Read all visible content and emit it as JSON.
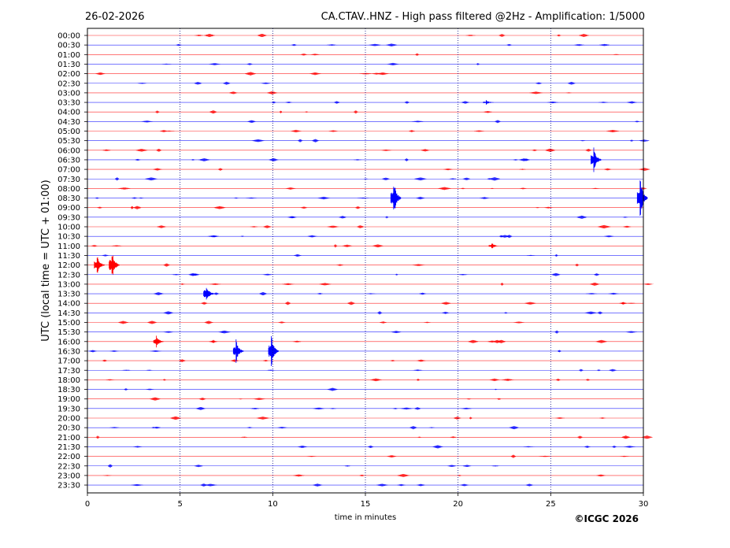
{
  "chart_data": {
    "type": "line",
    "date": "26-02-2026",
    "title": "CA.CTAV..HNZ - High pass filtered @2Hz - Amplification: 1/5000",
    "xlabel": "time in minutes",
    "ylabel": "UTC (local time = UTC + 01:00)",
    "copyright": "©ICGC 2026",
    "xlim": [
      0,
      30
    ],
    "x_ticks": [
      0,
      5,
      10,
      15,
      20,
      25,
      30
    ],
    "x_gridlines": [
      5,
      10,
      15,
      20,
      25
    ],
    "grid": "vertical dotted",
    "row_labels": [
      "00:00",
      "00:30",
      "01:00",
      "01:30",
      "02:00",
      "02:30",
      "03:00",
      "03:30",
      "04:00",
      "04:30",
      "05:00",
      "05:30",
      "06:00",
      "06:30",
      "07:00",
      "07:30",
      "08:00",
      "08:30",
      "09:00",
      "09:30",
      "10:00",
      "10:30",
      "11:00",
      "11:30",
      "12:00",
      "12:30",
      "13:00",
      "13:30",
      "14:00",
      "14:30",
      "15:00",
      "15:30",
      "16:00",
      "16:30",
      "17:00",
      "17:30",
      "18:00",
      "18:30",
      "19:00",
      "19:30",
      "20:00",
      "20:30",
      "21:00",
      "21:30",
      "22:00",
      "22:30",
      "23:00",
      "23:30"
    ],
    "trace_colors": [
      "#ff0000",
      "#0000ff"
    ],
    "events": [
      {
        "row": 7,
        "minute": 21.5,
        "amplitude": 0.3
      },
      {
        "row": 13,
        "minute": 27.3,
        "amplitude": 1.6
      },
      {
        "row": 17,
        "minute": 16.5,
        "amplitude": 2.4
      },
      {
        "row": 17,
        "minute": 29.8,
        "amplitude": 2.6
      },
      {
        "row": 22,
        "minute": 21.8,
        "amplitude": 0.4
      },
      {
        "row": 24,
        "minute": 0.5,
        "amplitude": 1.2
      },
      {
        "row": 24,
        "minute": 1.3,
        "amplitude": 1.8
      },
      {
        "row": 27,
        "minute": 6.4,
        "amplitude": 1.2
      },
      {
        "row": 32,
        "minute": 3.7,
        "amplitude": 0.8
      },
      {
        "row": 33,
        "minute": 8.0,
        "amplitude": 1.5
      },
      {
        "row": 33,
        "minute": 9.9,
        "amplitude": 2.0
      }
    ]
  }
}
